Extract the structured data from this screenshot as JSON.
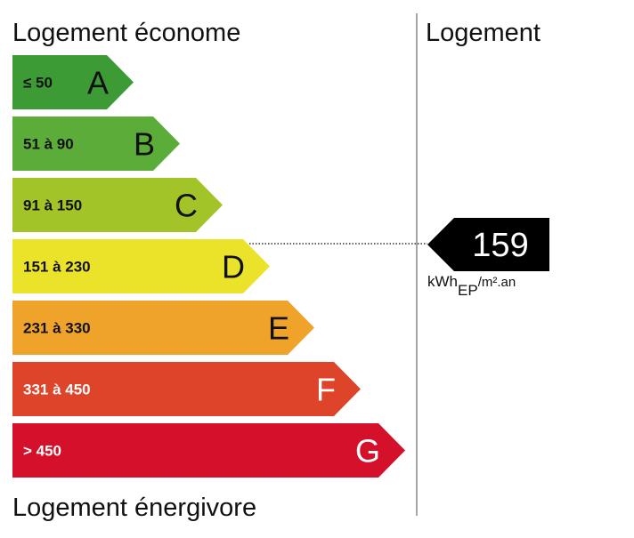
{
  "header": {
    "left_title": "Logement économe",
    "right_title": "Logement",
    "footer": "Logement énergivore"
  },
  "classes": [
    {
      "range": "≤ 50",
      "letter": "A"
    },
    {
      "range": "51 à 90",
      "letter": "B"
    },
    {
      "range": "91 à 150",
      "letter": "C"
    },
    {
      "range": "151 à 230",
      "letter": "D"
    },
    {
      "range": "231 à 330",
      "letter": "E"
    },
    {
      "range": "331 à 450",
      "letter": "F"
    },
    {
      "range": "> 450",
      "letter": "G"
    }
  ],
  "indicator": {
    "value": 159,
    "unit_main": "kWh",
    "unit_sub": "EP",
    "unit_tail": "/m².an"
  }
}
